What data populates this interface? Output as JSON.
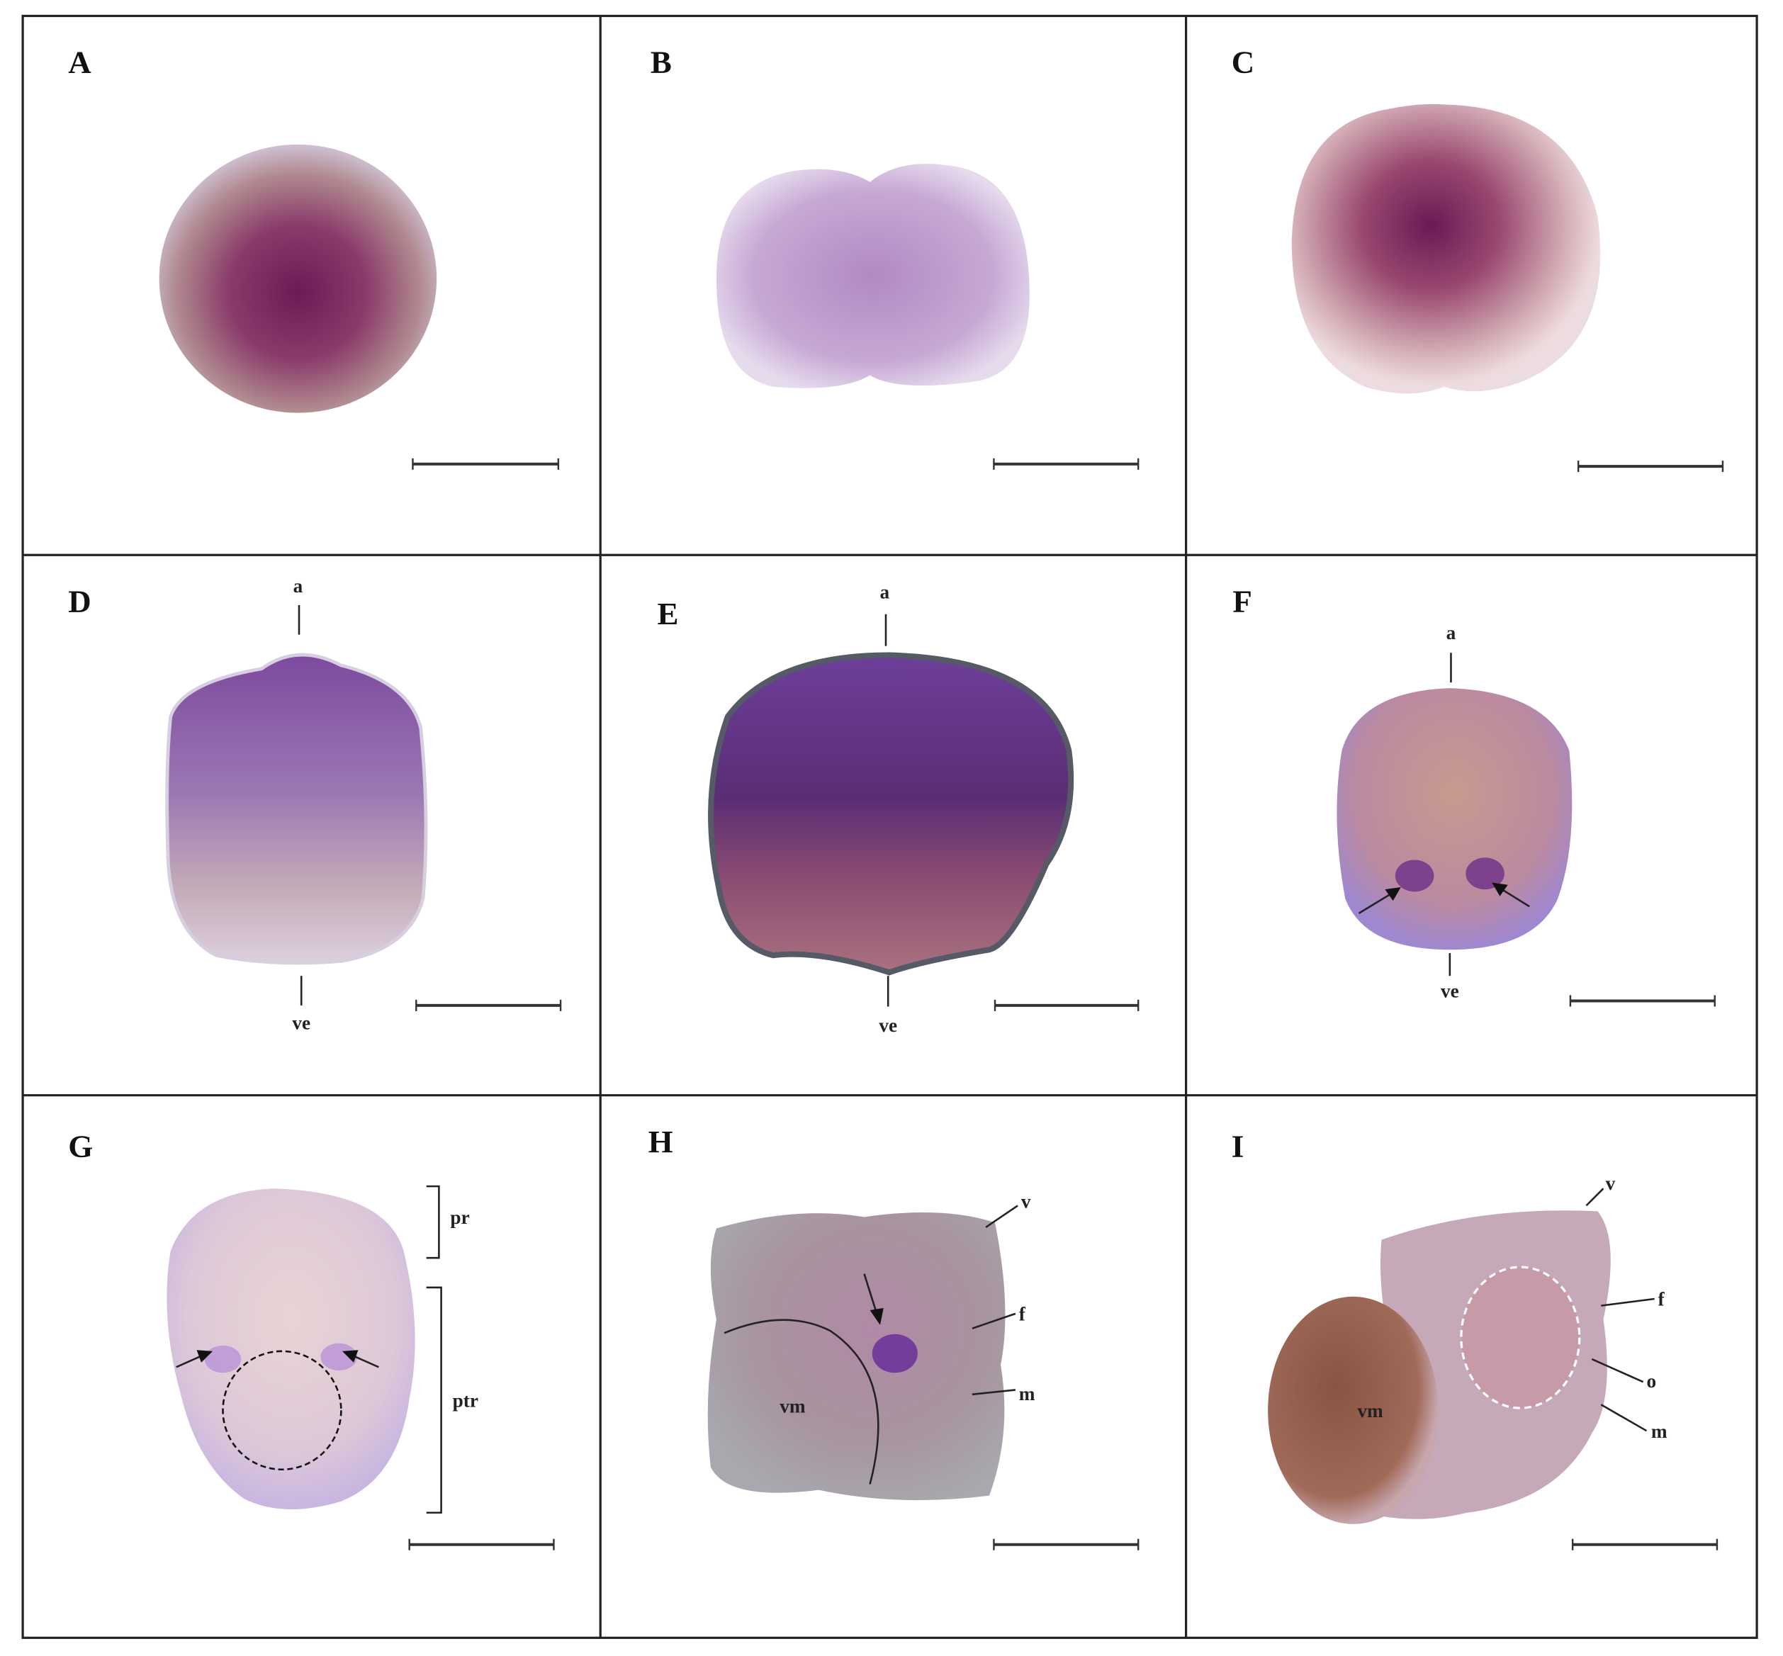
{
  "panels": [
    {
      "label": "A"
    },
    {
      "label": "B"
    },
    {
      "label": "C"
    },
    {
      "label": "D",
      "annotations": [
        "a",
        "ve"
      ]
    },
    {
      "label": "E",
      "annotations": [
        "a",
        "ve"
      ]
    },
    {
      "label": "F",
      "annotations": [
        "a",
        "ve"
      ]
    },
    {
      "label": "G",
      "annotations": [
        "pr",
        "ptr"
      ]
    },
    {
      "label": "H",
      "annotations": [
        "v",
        "f",
        "m",
        "vm"
      ]
    },
    {
      "label": "I",
      "annotations": [
        "v",
        "f",
        "o",
        "m",
        "vm"
      ]
    }
  ]
}
